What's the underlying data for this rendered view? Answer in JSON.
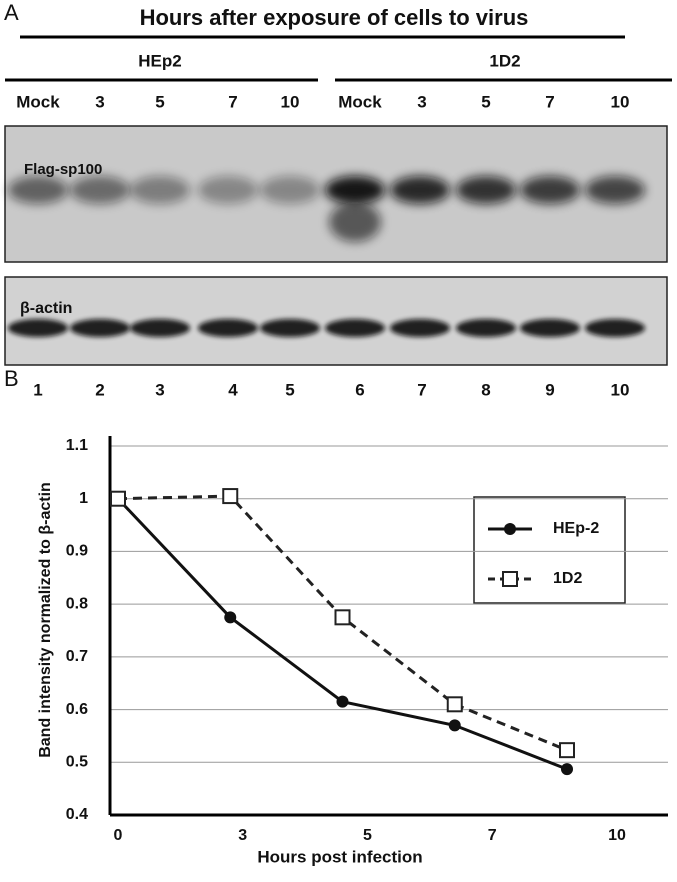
{
  "panel_a": {
    "label": "A",
    "title": "Hours after exposure of cells to virus",
    "groups": [
      "HEp2",
      "1D2"
    ],
    "lanes": [
      "Mock",
      "3",
      "5",
      "7",
      "10",
      "Mock",
      "3",
      "5",
      "7",
      "10"
    ],
    "blots": [
      "Flag-sp100",
      "β-actin"
    ],
    "lane_numbers": [
      1,
      2,
      3,
      4,
      5,
      6,
      7,
      8,
      9,
      10
    ]
  },
  "panel_b_label": "B",
  "chart_data": {
    "type": "line",
    "x_label": "Hours post infection",
    "y_label": "Band intensity normalized to β-actin",
    "categories": [
      "0",
      "3",
      "5",
      "7",
      "10"
    ],
    "series": [
      {
        "name": "HEp-2",
        "color": "#111111",
        "marker": "circle",
        "dashed": false,
        "values": [
          1.0,
          0.775,
          0.615,
          0.57,
          0.487
        ]
      },
      {
        "name": "1D2",
        "color": "#222222",
        "marker": "square",
        "dashed": true,
        "values": [
          1.0,
          1.005,
          0.775,
          0.61,
          0.523
        ]
      }
    ],
    "ylim": [
      0.4,
      1.1
    ],
    "yticks": [
      0.4,
      0.5,
      0.6,
      0.7,
      0.8,
      0.9,
      1,
      1.1
    ],
    "grid": true
  }
}
